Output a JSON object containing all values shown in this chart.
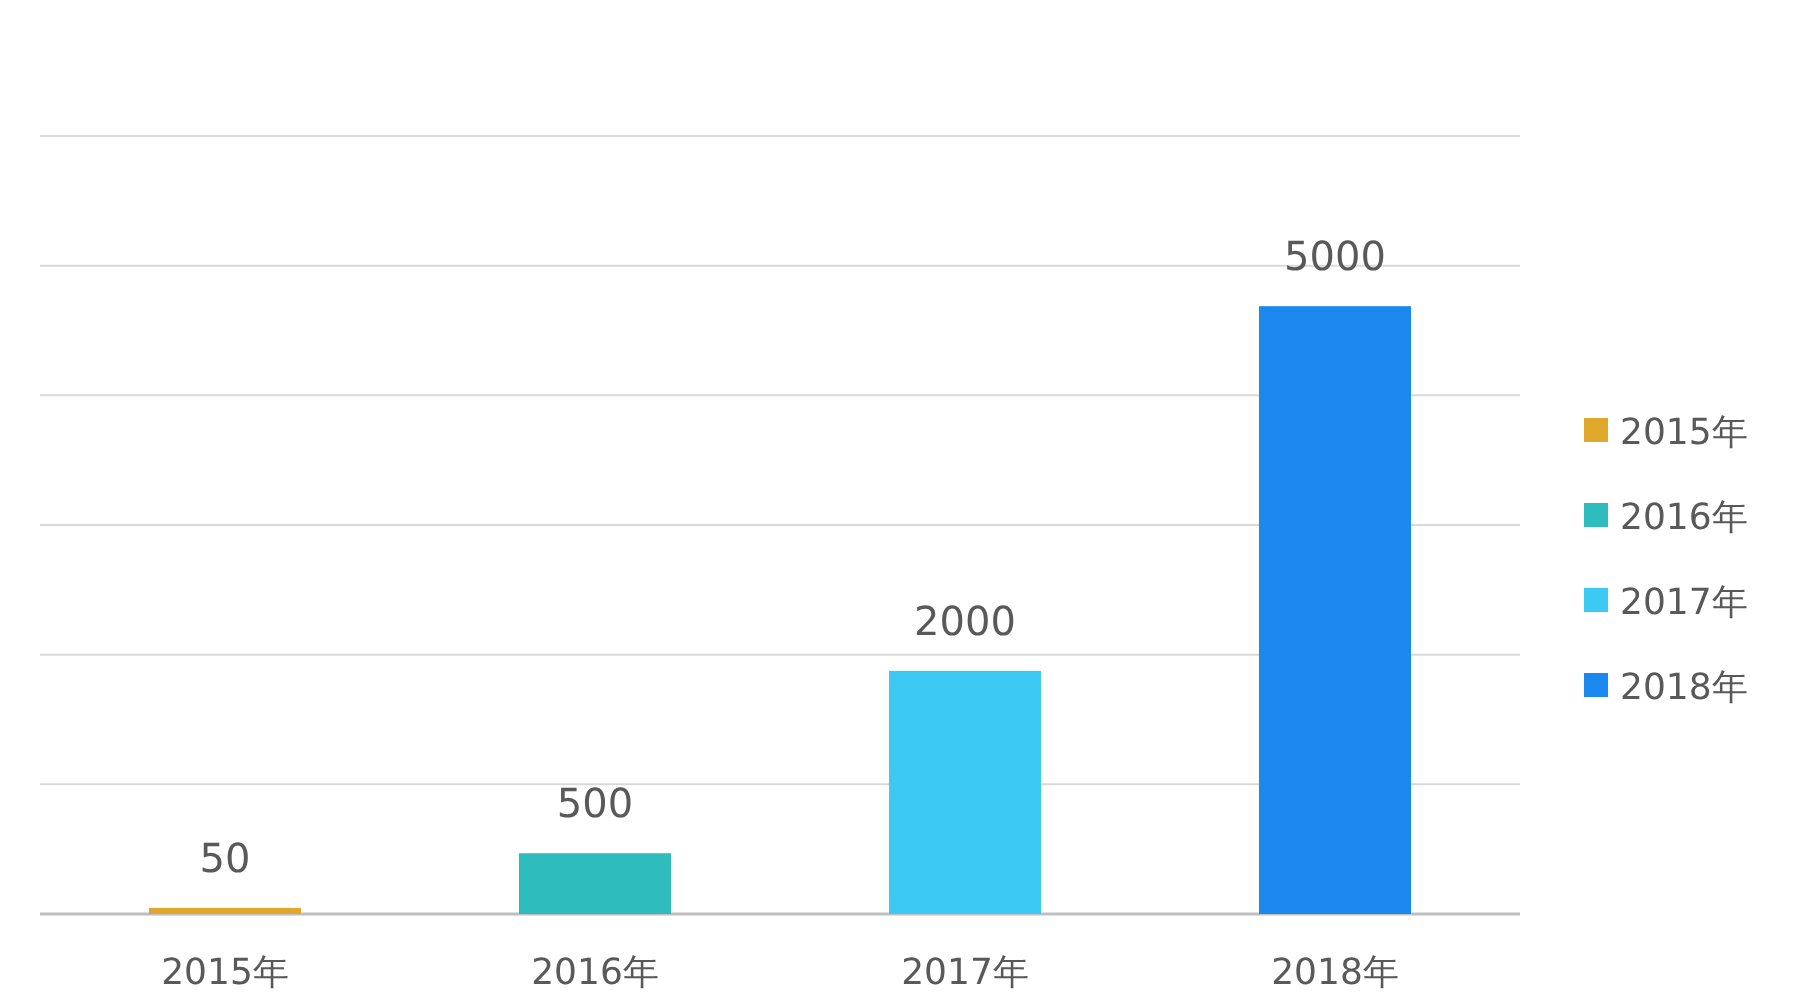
{
  "chart_data": {
    "type": "bar",
    "categories": [
      "2015年",
      "2016年",
      "2017年",
      "2018年"
    ],
    "series": [
      {
        "name": "2015年",
        "color": "#e0a82a",
        "values": [
          50,
          null,
          null,
          null
        ]
      },
      {
        "name": "2016年",
        "color": "#2fbcbc",
        "values": [
          null,
          500,
          null,
          null
        ]
      },
      {
        "name": "2017年",
        "color": "#3ccaf4",
        "values": [
          null,
          null,
          2000,
          null
        ]
      },
      {
        "name": "2018年",
        "color": "#1a88ee",
        "values": [
          null,
          null,
          null,
          5000
        ]
      }
    ],
    "stacked": true,
    "data_labels": true,
    "grid": "y",
    "legend": "right"
  }
}
